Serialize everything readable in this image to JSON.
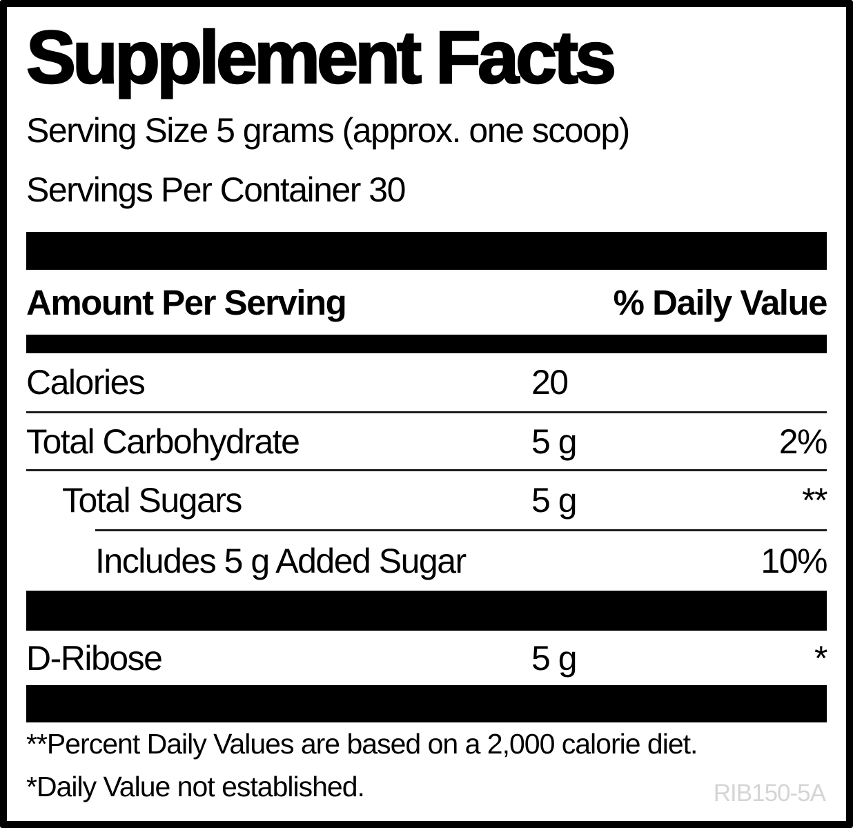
{
  "label": {
    "title": "Supplement Facts",
    "serving_size": "Serving Size 5 grams (approx. one scoop)",
    "servings_per_container": "Servings Per Container 30",
    "columns": {
      "amount_per_serving": "Amount Per Serving",
      "percent_daily_value": "% Daily Value"
    },
    "rows": [
      {
        "name": "Calories",
        "amount": "20",
        "daily_value": ""
      },
      {
        "name": "Total Carbohydrate",
        "amount": "5 g",
        "daily_value": "2%"
      },
      {
        "name": "Total Sugars",
        "amount": "5 g",
        "daily_value": "**"
      },
      {
        "name": "Includes 5 g Added Sugar",
        "amount": "",
        "daily_value": "10%"
      },
      {
        "name": "D-Ribose",
        "amount": "5 g",
        "daily_value": "*"
      }
    ],
    "footnotes": {
      "percent_dv": "**Percent Daily Values are based on a 2,000 calorie diet.",
      "dv_not_established": "*Daily Value not established."
    },
    "product_code": "RIB150-5A",
    "colors": {
      "ink": "#000000",
      "background": "#ffffff",
      "product_code_gray": "#d5d5d5"
    }
  }
}
